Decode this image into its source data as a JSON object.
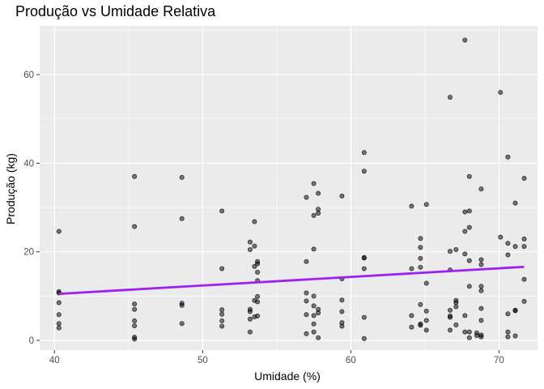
{
  "chart_data": {
    "type": "scatter",
    "title": "Produção vs Umidade Relativa",
    "xlabel": "Umidade (%)",
    "ylabel": "Produção (kg)",
    "xlim": [
      39,
      72.6
    ],
    "ylim": [
      -2.2,
      71
    ],
    "x_ticks": [
      40,
      50,
      60,
      70
    ],
    "y_ticks": [
      0,
      20,
      40,
      60
    ],
    "grid": true,
    "legend": "none",
    "colors": {
      "panel": "#ebebeb",
      "grid": "#ffffff",
      "points": "#000000",
      "trend": "#a020f0"
    },
    "trend_line": {
      "x": [
        40.3,
        71.7
      ],
      "y": [
        10.5,
        16.6
      ]
    },
    "points": [
      [
        40.3,
        24.6
      ],
      [
        40.3,
        11.0
      ],
      [
        40.3,
        10.7
      ],
      [
        40.3,
        8.5
      ],
      [
        40.3,
        5.8
      ],
      [
        40.3,
        3.8
      ],
      [
        40.3,
        2.8
      ],
      [
        45.4,
        37.0
      ],
      [
        45.4,
        25.7
      ],
      [
        45.4,
        8.2
      ],
      [
        45.4,
        7.0
      ],
      [
        45.4,
        4.4
      ],
      [
        45.4,
        3.3
      ],
      [
        45.4,
        0.7
      ],
      [
        45.4,
        0.3
      ],
      [
        48.6,
        36.8
      ],
      [
        48.6,
        27.5
      ],
      [
        48.6,
        8.4
      ],
      [
        48.6,
        7.9
      ],
      [
        48.6,
        3.8
      ],
      [
        51.3,
        29.2
      ],
      [
        51.3,
        16.2
      ],
      [
        51.3,
        6.9
      ],
      [
        51.3,
        5.9
      ],
      [
        51.3,
        4.4
      ],
      [
        51.3,
        3.2
      ],
      [
        53.2,
        22.2
      ],
      [
        53.2,
        20.5
      ],
      [
        53.2,
        7.0
      ],
      [
        53.2,
        6.5
      ],
      [
        53.2,
        4.8
      ],
      [
        53.2,
        1.9
      ],
      [
        53.5,
        26.8
      ],
      [
        53.5,
        21.3
      ],
      [
        53.5,
        16.7
      ],
      [
        53.5,
        9.0
      ],
      [
        53.5,
        5.3
      ],
      [
        53.7,
        17.8
      ],
      [
        53.7,
        17.3
      ],
      [
        53.7,
        15.4
      ],
      [
        53.7,
        13.5
      ],
      [
        53.7,
        9.9
      ],
      [
        53.7,
        8.7
      ],
      [
        53.7,
        5.5
      ],
      [
        57.0,
        32.3
      ],
      [
        57.0,
        17.8
      ],
      [
        57.0,
        10.7
      ],
      [
        57.0,
        8.9
      ],
      [
        57.0,
        5.8
      ],
      [
        57.0,
        1.5
      ],
      [
        57.5,
        35.4
      ],
      [
        57.5,
        28.2
      ],
      [
        57.5,
        20.6
      ],
      [
        57.5,
        10.0
      ],
      [
        57.5,
        7.8
      ],
      [
        57.5,
        5.6
      ],
      [
        57.5,
        3.7
      ],
      [
        57.5,
        1.9
      ],
      [
        57.8,
        33.2
      ],
      [
        57.8,
        29.6
      ],
      [
        57.8,
        28.7
      ],
      [
        57.8,
        7.0
      ],
      [
        57.8,
        6.2
      ],
      [
        57.8,
        0.6
      ],
      [
        59.4,
        32.6
      ],
      [
        59.4,
        13.9
      ],
      [
        59.4,
        9.1
      ],
      [
        59.4,
        6.5
      ],
      [
        59.4,
        4.0
      ],
      [
        59.4,
        3.2
      ],
      [
        60.9,
        42.4
      ],
      [
        60.9,
        38.2
      ],
      [
        60.9,
        18.7
      ],
      [
        60.9,
        18.6
      ],
      [
        60.9,
        16.2
      ],
      [
        60.9,
        5.2
      ],
      [
        60.9,
        0.4
      ],
      [
        64.1,
        30.3
      ],
      [
        64.1,
        16.2
      ],
      [
        64.1,
        5.6
      ],
      [
        64.1,
        3.0
      ],
      [
        64.7,
        23.0
      ],
      [
        64.7,
        21.0
      ],
      [
        64.7,
        18.5
      ],
      [
        64.7,
        16.5
      ],
      [
        64.7,
        8.1
      ],
      [
        64.7,
        3.7
      ],
      [
        64.7,
        3.4
      ],
      [
        65.1,
        30.7
      ],
      [
        65.1,
        12.9
      ],
      [
        65.1,
        6.6
      ],
      [
        65.1,
        4.5
      ],
      [
        65.1,
        2.3
      ],
      [
        66.7,
        54.9
      ],
      [
        66.7,
        20.1
      ],
      [
        66.7,
        15.9
      ],
      [
        66.7,
        6.8
      ],
      [
        66.7,
        5.5
      ],
      [
        66.7,
        5.2
      ],
      [
        66.7,
        2.3
      ],
      [
        67.1,
        20.5
      ],
      [
        67.1,
        9.0
      ],
      [
        67.1,
        8.5
      ],
      [
        67.1,
        7.6
      ],
      [
        67.1,
        3.5
      ],
      [
        67.7,
        67.8
      ],
      [
        67.7,
        29.0
      ],
      [
        67.7,
        24.6
      ],
      [
        67.7,
        19.5
      ],
      [
        67.7,
        5.6
      ],
      [
        67.7,
        1.9
      ],
      [
        68.0,
        37.0
      ],
      [
        68.0,
        29.2
      ],
      [
        68.0,
        25.5
      ],
      [
        68.0,
        18.0
      ],
      [
        68.0,
        12.2
      ],
      [
        68.0,
        1.9
      ],
      [
        68.0,
        0.6
      ],
      [
        68.5,
        1.7
      ],
      [
        68.5,
        1.1
      ],
      [
        68.8,
        34.2
      ],
      [
        68.8,
        18.2
      ],
      [
        68.8,
        17.1
      ],
      [
        68.8,
        12.2
      ],
      [
        68.8,
        11.2
      ],
      [
        68.8,
        7.2
      ],
      [
        68.8,
        4.5
      ],
      [
        68.8,
        1.2
      ],
      [
        68.8,
        0.8
      ],
      [
        70.1,
        56.0
      ],
      [
        70.1,
        23.3
      ],
      [
        70.6,
        41.4
      ],
      [
        70.6,
        21.9
      ],
      [
        70.6,
        19.3
      ],
      [
        70.6,
        6.0
      ],
      [
        70.6,
        1.9
      ],
      [
        70.6,
        0.8
      ],
      [
        71.1,
        31.0
      ],
      [
        71.1,
        21.2
      ],
      [
        71.1,
        6.8
      ],
      [
        71.1,
        6.7
      ],
      [
        71.1,
        1.0
      ],
      [
        71.7,
        36.6
      ],
      [
        71.7,
        22.9
      ],
      [
        71.7,
        21.2
      ],
      [
        71.7,
        13.8
      ],
      [
        71.7,
        8.8
      ]
    ]
  }
}
